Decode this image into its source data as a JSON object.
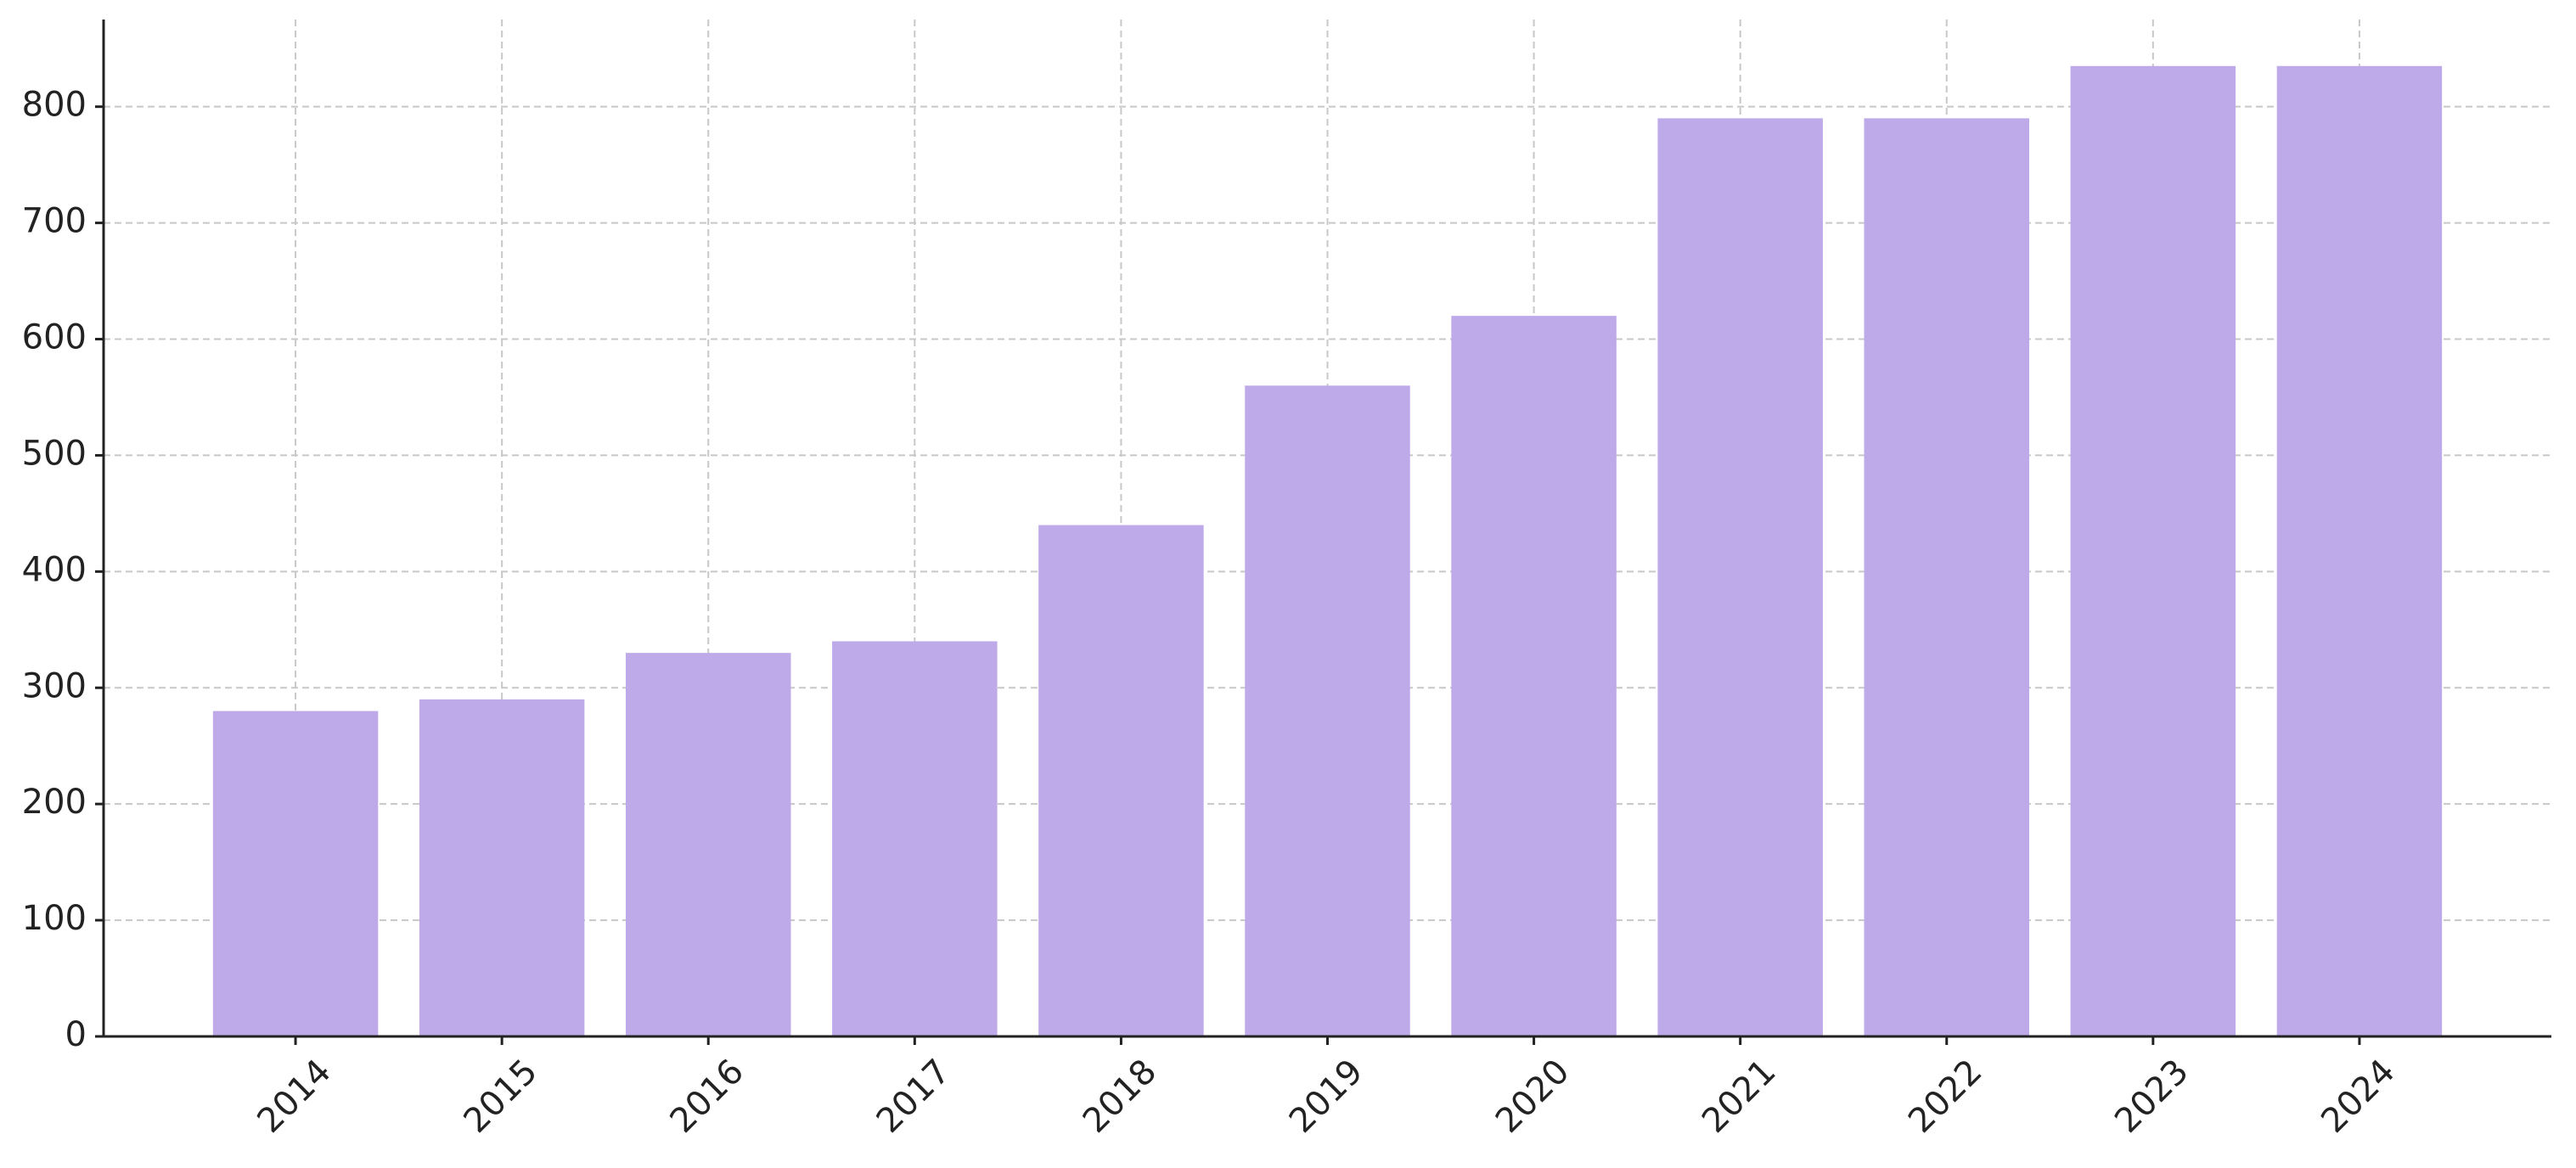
{
  "chart_data": {
    "type": "bar",
    "categories": [
      "2014",
      "2015",
      "2016",
      "2017",
      "2018",
      "2019",
      "2020",
      "2021",
      "2022",
      "2023",
      "2024"
    ],
    "values": [
      280,
      290,
      330,
      340,
      440,
      560,
      620,
      790,
      790,
      835,
      835
    ],
    "color": "#bea9e9",
    "ylim": [
      0,
      875
    ],
    "yticks": [
      0,
      100,
      200,
      300,
      400,
      500,
      600,
      700,
      800
    ],
    "grid": true
  }
}
